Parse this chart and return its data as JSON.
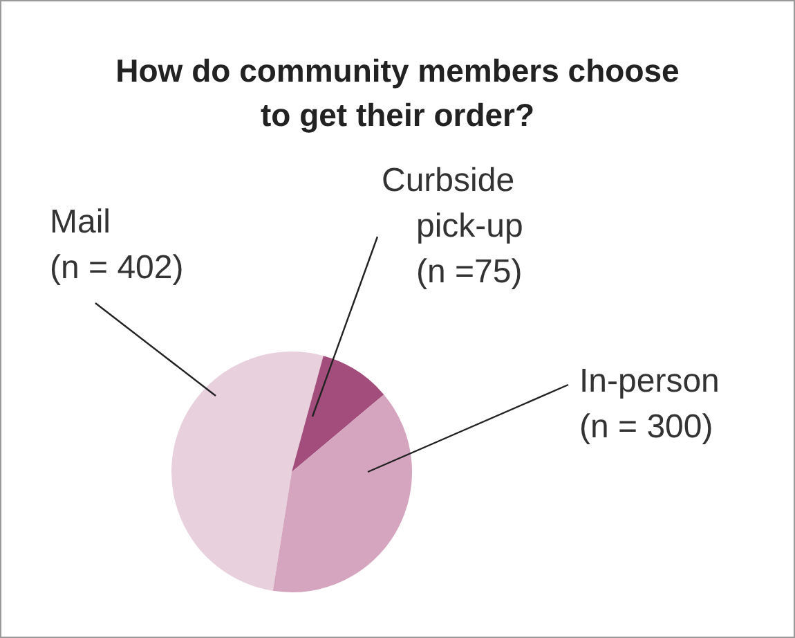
{
  "chart_data": {
    "type": "pie",
    "title": "How do community members choose to get their order?",
    "categories": [
      "Mail",
      "Curbside pick-up",
      "In-person"
    ],
    "values": [
      402,
      75,
      300
    ],
    "value_labels": [
      "(n = 402)",
      "(n =75)",
      "(n = 300)"
    ],
    "colors": [
      "#e8d0dd",
      "#a34d7c",
      "#d5a5bf"
    ]
  }
}
